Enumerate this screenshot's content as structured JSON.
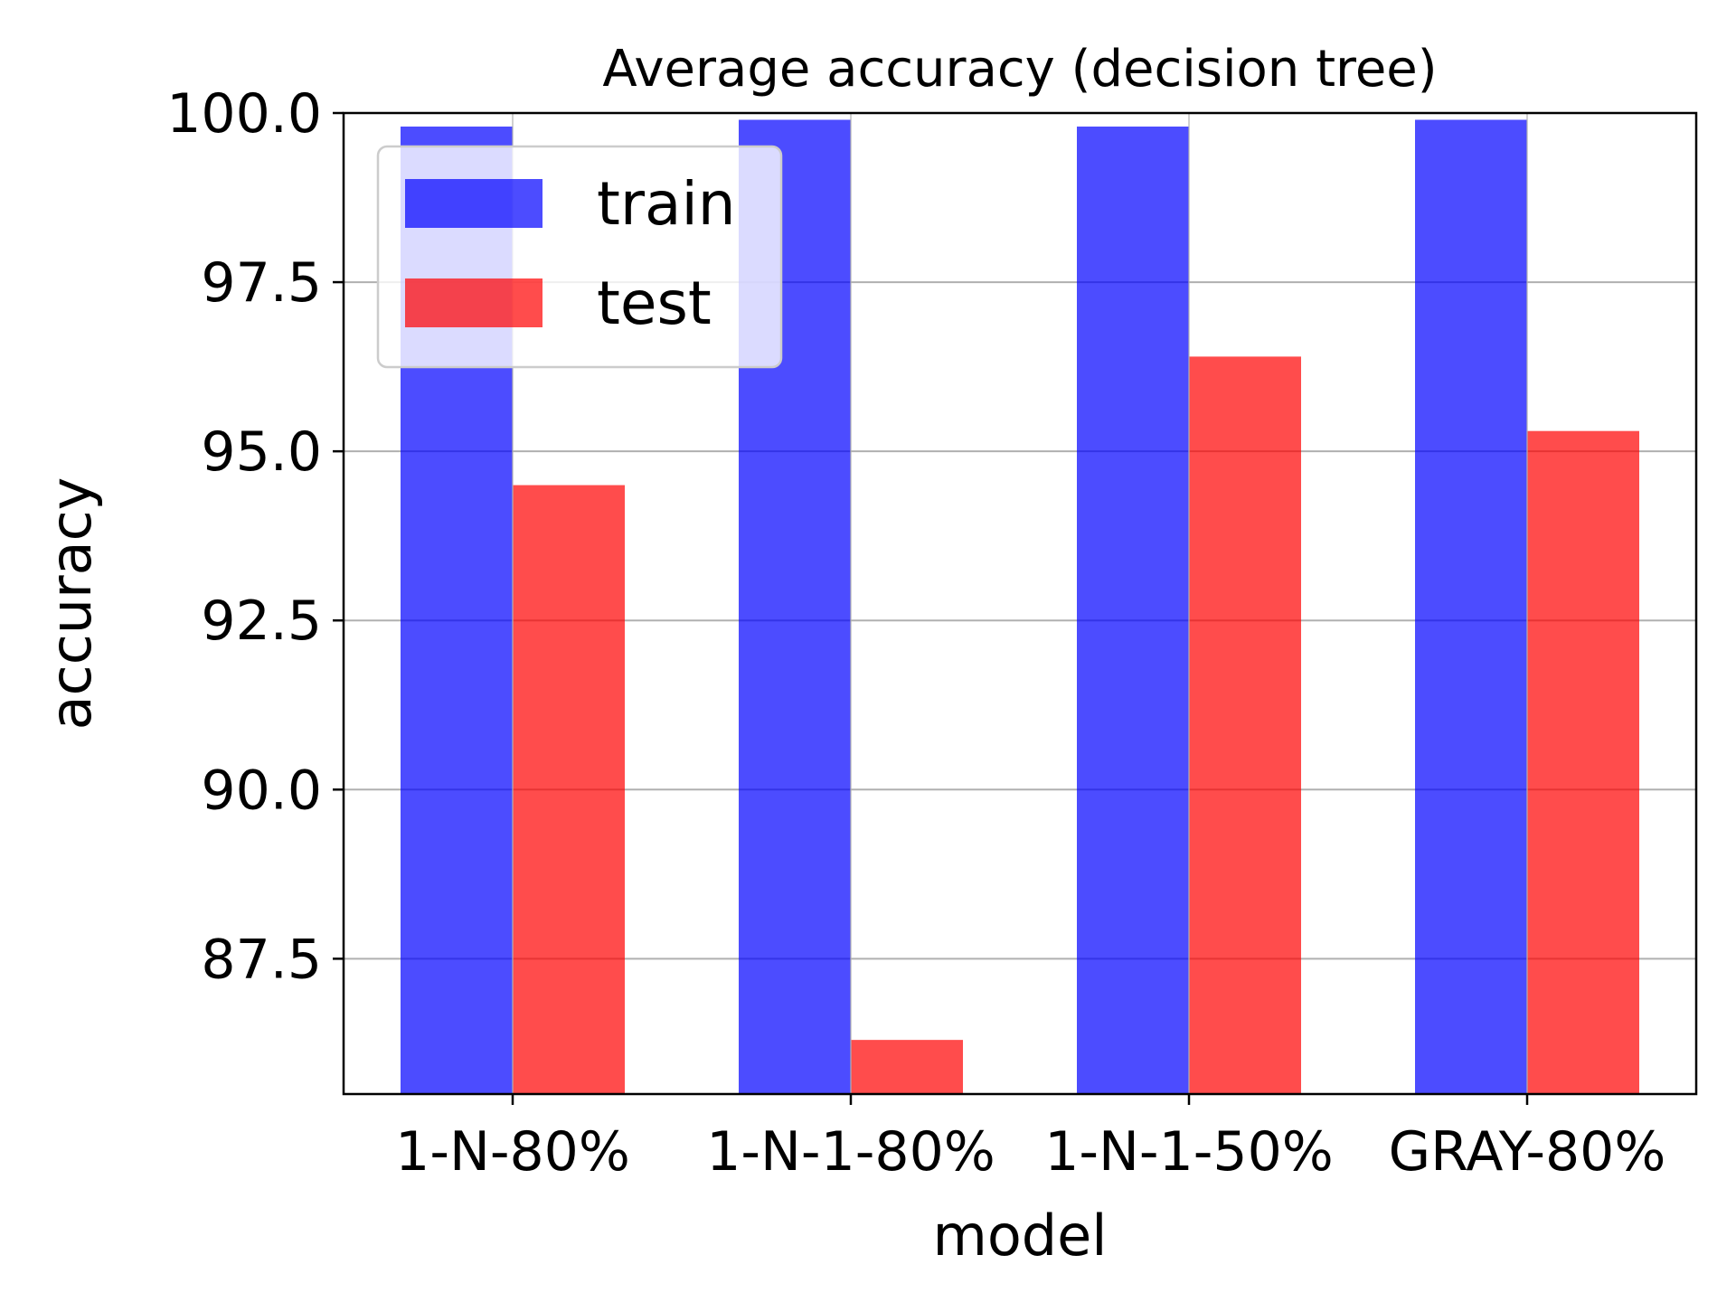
{
  "chart_data": {
    "type": "bar",
    "title": "Average accuracy (decision tree)",
    "xlabel": "model",
    "ylabel": "accuracy",
    "categories": [
      "1-N-80%",
      "1-N-1-80%",
      "1-N-1-50%",
      "GRAY-80%"
    ],
    "series": [
      {
        "name": "train",
        "values": [
          99.8,
          99.9,
          99.8,
          99.9
        ],
        "color": "#0000ff",
        "alpha": 0.7
      },
      {
        "name": "test",
        "values": [
          94.5,
          86.3,
          96.4,
          95.3
        ],
        "color": "#ff0000",
        "alpha": 0.7
      }
    ],
    "ylim": [
      85.5,
      100.0
    ],
    "yticks": [
      "87.5",
      "90.0",
      "92.5",
      "95.0",
      "97.5",
      "100.0"
    ],
    "grid": "y",
    "legend_position": "upper-left"
  }
}
